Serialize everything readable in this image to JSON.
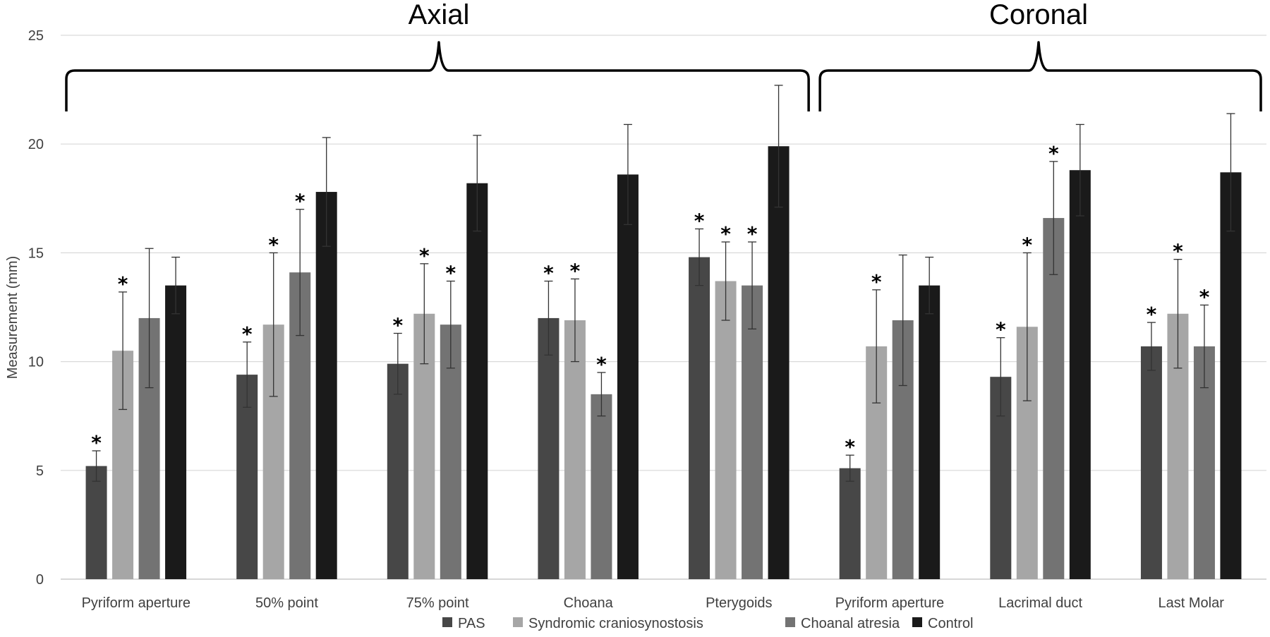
{
  "chart_data": {
    "type": "bar",
    "ylabel": "Measurement (mm)",
    "ylim": [
      0,
      25
    ],
    "yticks": [
      0,
      5,
      10,
      15,
      20,
      25
    ],
    "grid": true,
    "legend_position": "bottom",
    "categories": [
      "Pyriform aperture",
      "50% point",
      "75% point",
      "Choana",
      "Pterygoids",
      "Pyriform aperture",
      "Lacrimal duct",
      "Last Molar"
    ],
    "groups": [
      {
        "title": "Axial",
        "categories": [
          0,
          1,
          2,
          3,
          4
        ]
      },
      {
        "title": "Coronal",
        "categories": [
          5,
          6,
          7
        ]
      }
    ],
    "series": [
      {
        "name": "PAS",
        "color": "#474747",
        "values": [
          5.2,
          9.4,
          9.9,
          12.0,
          14.8,
          5.1,
          9.3,
          10.7
        ],
        "errors": [
          0.7,
          1.5,
          1.4,
          1.7,
          1.3,
          0.6,
          1.8,
          1.1
        ],
        "significant": [
          true,
          true,
          true,
          true,
          true,
          true,
          true,
          true
        ]
      },
      {
        "name": "Syndromic craniosynostosis",
        "color": "#a6a6a6",
        "values": [
          10.5,
          11.7,
          12.2,
          11.9,
          13.7,
          10.7,
          11.6,
          12.2
        ],
        "errors": [
          2.7,
          3.3,
          2.3,
          1.9,
          1.8,
          2.6,
          3.4,
          2.5
        ],
        "significant": [
          true,
          true,
          true,
          true,
          true,
          true,
          true,
          true
        ]
      },
      {
        "name": "Choanal atresia",
        "color": "#737373",
        "values": [
          12.0,
          14.1,
          11.7,
          8.5,
          13.5,
          11.9,
          16.6,
          10.7
        ],
        "errors": [
          3.2,
          2.9,
          2.0,
          1.0,
          2.0,
          3.0,
          2.6,
          1.9
        ],
        "significant": [
          false,
          true,
          true,
          true,
          true,
          false,
          true,
          true
        ]
      },
      {
        "name": "Control",
        "color": "#1a1a1a",
        "values": [
          13.5,
          17.8,
          18.2,
          18.6,
          19.9,
          13.5,
          18.8,
          18.7
        ],
        "errors": [
          1.3,
          2.5,
          2.2,
          2.3,
          2.8,
          1.3,
          2.1,
          2.7
        ],
        "significant": [
          false,
          false,
          false,
          false,
          false,
          false,
          false,
          false
        ]
      }
    ],
    "annotation_symbol": "*"
  }
}
